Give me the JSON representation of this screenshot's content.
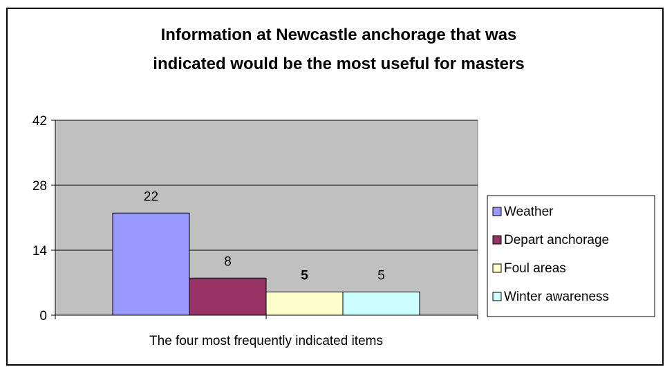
{
  "chart_data": {
    "type": "bar",
    "title_lines": [
      "Information at Newcastle anchorage that was",
      "indicated would be the most useful for masters"
    ],
    "xlabel": "The four most frequently indicated items",
    "ylabel": "",
    "ylim": [
      0,
      42
    ],
    "yticks": [
      0,
      14,
      28,
      42
    ],
    "grid": true,
    "legend_position": "right",
    "series": [
      {
        "name": "Weather",
        "value": 22,
        "color": "#9999ff",
        "label_bold": false
      },
      {
        "name": "Depart anchorage",
        "value": 8,
        "color": "#993366",
        "label_bold": false
      },
      {
        "name": "Foul areas",
        "value": 5,
        "color": "#ffffcc",
        "label_bold": true
      },
      {
        "name": "Winter awareness",
        "value": 5,
        "color": "#ccffff",
        "label_bold": false
      }
    ],
    "plot_background": "#c0c0c0"
  }
}
